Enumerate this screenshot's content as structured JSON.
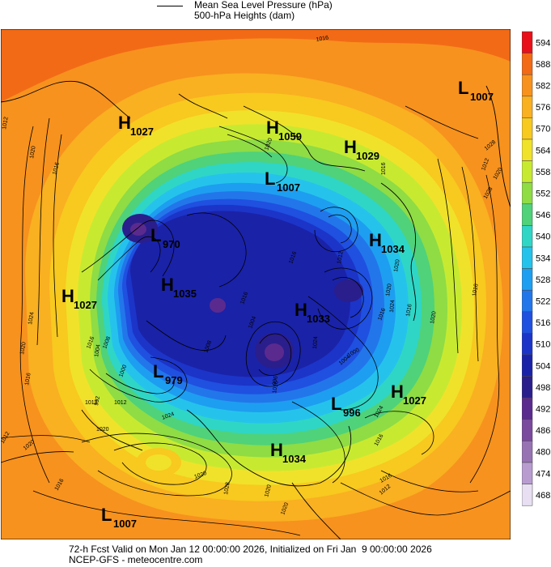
{
  "legend": {
    "mslp_label": "Mean Sea Level Pressure (hPa)",
    "heights_label": "500-hPa Heights (dam)"
  },
  "footer": {
    "line1": "72-h Fcst Valid on Mon Jan 12 00:00:00 2026, Initialized on Fri Jan  9 00:00:00 2026",
    "line2": "NCEP-GFS - meteocentre.com"
  },
  "colorbar": {
    "levels": [
      {
        "value": "594",
        "color": "#e8101a"
      },
      {
        "value": "588",
        "color": "#f26a16"
      },
      {
        "value": "582",
        "color": "#f7921e"
      },
      {
        "value": "576",
        "color": "#f9b021"
      },
      {
        "value": "570",
        "color": "#f8c91f"
      },
      {
        "value": "564",
        "color": "#f0e22a"
      },
      {
        "value": "558",
        "color": "#c7ea31"
      },
      {
        "value": "552",
        "color": "#8fdc45"
      },
      {
        "value": "546",
        "color": "#4fd27a"
      },
      {
        "value": "540",
        "color": "#2fd6c6"
      },
      {
        "value": "534",
        "color": "#25c3ec"
      },
      {
        "value": "528",
        "color": "#1e9ef0"
      },
      {
        "value": "522",
        "color": "#2276ea"
      },
      {
        "value": "516",
        "color": "#1f50e0"
      },
      {
        "value": "510",
        "color": "#1c34c8"
      },
      {
        "value": "504",
        "color": "#1a22a8"
      },
      {
        "value": "498",
        "color": "#2a1e8c"
      },
      {
        "value": "492",
        "color": "#5b2a8e"
      },
      {
        "value": "486",
        "color": "#7a4a9e"
      },
      {
        "value": "480",
        "color": "#9773b4"
      },
      {
        "value": "474",
        "color": "#b89cd0"
      },
      {
        "value": "468",
        "color": "#e8e0f2"
      }
    ]
  },
  "map": {
    "pressure_centers": [
      {
        "type": "H",
        "value": "1027",
        "name": "high-ne-pacific-north"
      },
      {
        "type": "H",
        "value": "1059",
        "name": "high-siberia"
      },
      {
        "type": "H",
        "value": "1029",
        "name": "high-china"
      },
      {
        "type": "L",
        "value": "1007",
        "name": "low-top-right"
      },
      {
        "type": "L",
        "value": "1007",
        "name": "low-arctic"
      },
      {
        "type": "L",
        "value": "970",
        "name": "low-bering"
      },
      {
        "type": "H",
        "value": "1034",
        "name": "high-east-asia"
      },
      {
        "type": "H",
        "value": "1035",
        "name": "high-alaska"
      },
      {
        "type": "H",
        "value": "1027",
        "name": "high-pacific-west"
      },
      {
        "type": "H",
        "value": "1033",
        "name": "high-greenland"
      },
      {
        "type": "L",
        "value": "979",
        "name": "low-canada"
      },
      {
        "type": "L",
        "value": "996",
        "name": "low-atlantic"
      },
      {
        "type": "H",
        "value": "1027",
        "name": "high-atlantic"
      },
      {
        "type": "H",
        "value": "1034",
        "name": "high-us-east"
      },
      {
        "type": "L",
        "value": "1007",
        "name": "low-bottom-left"
      }
    ],
    "isobar_labels": [
      "1016",
      "1012",
      "1020",
      "1016",
      "1024",
      "1020",
      "1016",
      "1012",
      "1012",
      "1012",
      "1020",
      "1024",
      "1020",
      "1016",
      "1028",
      "1020",
      "1020",
      "1016",
      "1016",
      "1012",
      "1016",
      "1020",
      "1016",
      "1012",
      "1020",
      "1028",
      "1016",
      "1020",
      "1024",
      "1024",
      "1016",
      "1004",
      "1000",
      "996",
      "1004",
      "1008",
      "1000",
      "992",
      "1016",
      "1004",
      "1008",
      "1016",
      "1016",
      "1012",
      "1020",
      "1028",
      "1020",
      "1024",
      "1016",
      "1020"
    ]
  }
}
